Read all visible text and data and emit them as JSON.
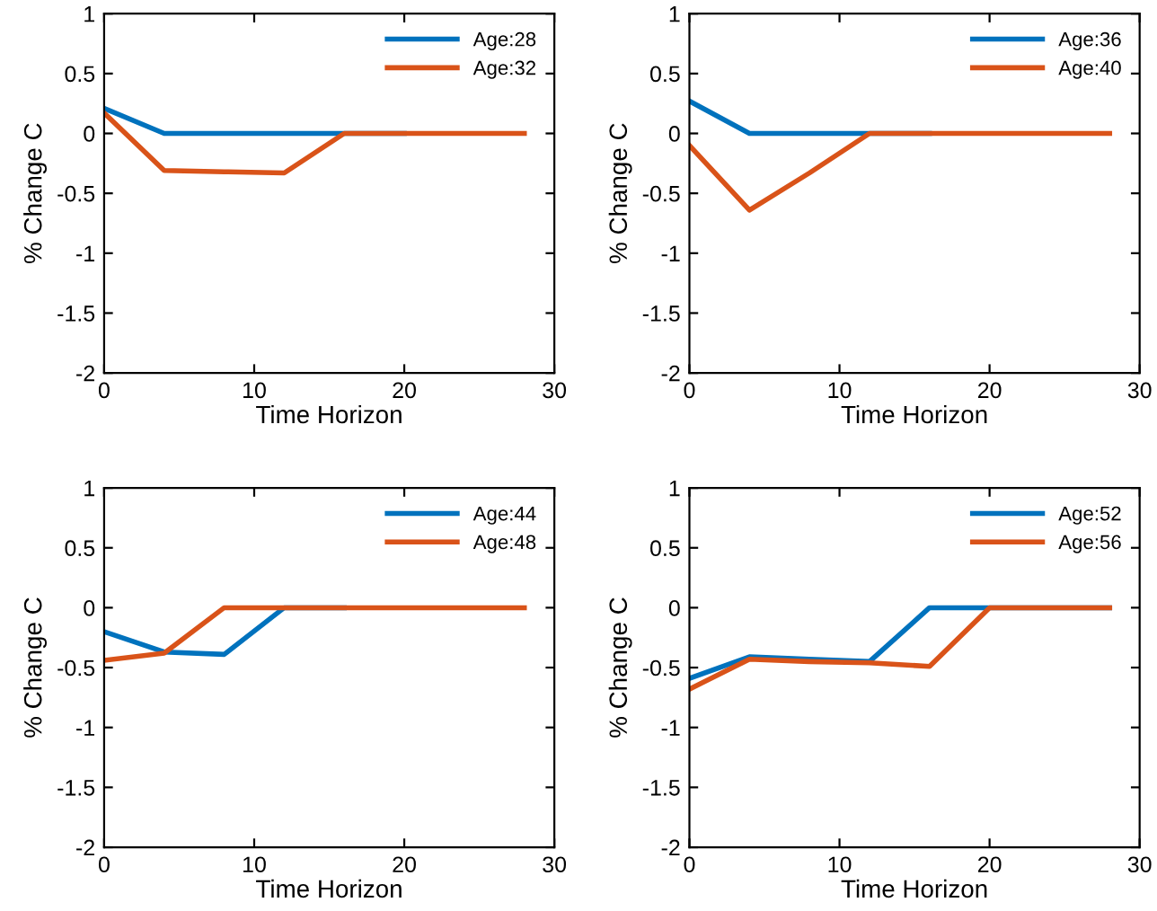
{
  "chart_data": [
    {
      "type": "line",
      "xlabel": "Time Horizon",
      "ylabel": "% Change C",
      "x": [
        0,
        4,
        8,
        12,
        16,
        20,
        24,
        28
      ],
      "xlim": [
        0,
        30
      ],
      "xticks": [
        0,
        10,
        20,
        30
      ],
      "ylim": [
        -2,
        1
      ],
      "yticks": [
        -2,
        -1.5,
        -1,
        -0.5,
        0,
        0.5,
        1
      ],
      "grid": false,
      "legend": "top right",
      "series": [
        {
          "name": "Age:28",
          "color": "#0072bd",
          "values": [
            0.21,
            0,
            0,
            0,
            0,
            0,
            null,
            null
          ]
        },
        {
          "name": "Age:32",
          "color": "#d95319",
          "values": [
            0.17,
            -0.31,
            -0.32,
            -0.33,
            0,
            0,
            0,
            0
          ]
        }
      ]
    },
    {
      "type": "line",
      "xlabel": "Time Horizon",
      "ylabel": "% Change C",
      "x": [
        0,
        4,
        8,
        12,
        16,
        20,
        24,
        28
      ],
      "xlim": [
        0,
        30
      ],
      "xticks": [
        0,
        10,
        20,
        30
      ],
      "ylim": [
        -2,
        1
      ],
      "yticks": [
        -2,
        -1.5,
        -1,
        -0.5,
        0,
        0.5,
        1
      ],
      "grid": false,
      "legend": "top right",
      "series": [
        {
          "name": "Age:36",
          "color": "#0072bd",
          "values": [
            0.27,
            0,
            0,
            0,
            0,
            null,
            null,
            null
          ]
        },
        {
          "name": "Age:40",
          "color": "#d95319",
          "values": [
            -0.1,
            -0.64,
            -0.33,
            0,
            0,
            0,
            0,
            0
          ]
        }
      ]
    },
    {
      "type": "line",
      "xlabel": "Time Horizon",
      "ylabel": "% Change C",
      "x": [
        0,
        4,
        8,
        12,
        16,
        20,
        24,
        28
      ],
      "xlim": [
        0,
        30
      ],
      "xticks": [
        0,
        10,
        20,
        30
      ],
      "ylim": [
        -2,
        1
      ],
      "yticks": [
        -2,
        -1.5,
        -1,
        -0.5,
        0,
        0.5,
        1
      ],
      "grid": false,
      "legend": "top right",
      "series": [
        {
          "name": "Age:44",
          "color": "#0072bd",
          "values": [
            -0.2,
            -0.37,
            -0.39,
            0,
            0,
            null,
            null,
            null
          ]
        },
        {
          "name": "Age:48",
          "color": "#d95319",
          "values": [
            -0.44,
            -0.38,
            0,
            0,
            0,
            0,
            0,
            0
          ]
        }
      ]
    },
    {
      "type": "line",
      "xlabel": "Time Horizon",
      "ylabel": "% Change C",
      "x": [
        0,
        4,
        8,
        12,
        16,
        20,
        24,
        28
      ],
      "xlim": [
        0,
        30
      ],
      "xticks": [
        0,
        10,
        20,
        30
      ],
      "ylim": [
        -2,
        1
      ],
      "yticks": [
        -2,
        -1.5,
        -1,
        -0.5,
        0,
        0.5,
        1
      ],
      "grid": false,
      "legend": "top right",
      "series": [
        {
          "name": "Age:52",
          "color": "#0072bd",
          "values": [
            -0.59,
            -0.41,
            -0.43,
            -0.45,
            0,
            0,
            0,
            0
          ]
        },
        {
          "name": "Age:56",
          "color": "#d95319",
          "values": [
            -0.68,
            -0.43,
            -0.45,
            -0.46,
            -0.49,
            0,
            0,
            0
          ]
        }
      ]
    }
  ]
}
